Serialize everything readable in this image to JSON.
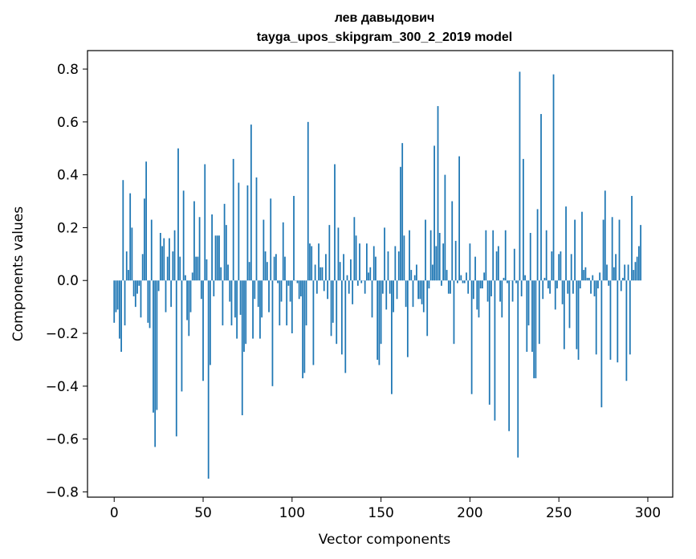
{
  "chart_data": {
    "type": "bar",
    "title": "лев давыдович",
    "subtitle": "tayga_upos_skipgram_300_2_2019 model",
    "xlabel": "Vector components",
    "ylabel": "Components values",
    "xlim": [
      -15,
      314
    ],
    "ylim": [
      -0.82,
      0.87
    ],
    "x_ticks": [
      0,
      50,
      100,
      150,
      200,
      250,
      300
    ],
    "y_ticks": [
      -0.8,
      -0.6,
      -0.4,
      -0.2,
      0.0,
      0.2,
      0.4,
      0.6,
      0.8
    ],
    "x_tick_labels": [
      "0",
      "50",
      "100",
      "150",
      "200",
      "250",
      "300"
    ],
    "y_tick_labels": [
      "−0.8",
      "−0.6",
      "−0.4",
      "−0.2",
      "0.0",
      "0.2",
      "0.4",
      "0.6",
      "0.8"
    ],
    "bar_color": "#1f77b4",
    "grid": false,
    "values": [
      -0.16,
      -0.12,
      -0.11,
      -0.22,
      -0.27,
      0.38,
      -0.17,
      0.11,
      0.04,
      0.33,
      0.2,
      -0.06,
      -0.1,
      -0.05,
      -0.02,
      -0.14,
      0.1,
      0.31,
      0.45,
      -0.16,
      -0.18,
      0.23,
      -0.5,
      -0.63,
      -0.49,
      -0.04,
      0.18,
      0.13,
      0.16,
      -0.12,
      0.09,
      0.16,
      -0.1,
      0.11,
      0.19,
      -0.59,
      0.5,
      0.09,
      -0.42,
      0.34,
      0.02,
      -0.15,
      -0.21,
      -0.12,
      0.03,
      0.3,
      0.09,
      0.09,
      0.24,
      -0.07,
      -0.38,
      0.44,
      0.08,
      -0.75,
      -0.32,
      0.25,
      -0.06,
      0.17,
      0.17,
      0.17,
      0.05,
      -0.17,
      0.29,
      0.21,
      0.06,
      -0.08,
      -0.17,
      0.46,
      -0.14,
      -0.22,
      0.37,
      -0.13,
      -0.51,
      -0.27,
      -0.24,
      0.36,
      0.07,
      0.59,
      -0.22,
      -0.07,
      0.39,
      -0.1,
      -0.22,
      -0.14,
      0.23,
      0.11,
      0.07,
      -0.12,
      0.31,
      -0.4,
      0.09,
      0.1,
      -0.01,
      -0.17,
      -0.08,
      0.22,
      0.09,
      -0.17,
      -0.02,
      -0.08,
      -0.2,
      0.32,
      0.0,
      -0.01,
      -0.07,
      -0.06,
      -0.37,
      -0.35,
      -0.17,
      0.6,
      0.14,
      0.13,
      -0.32,
      0.06,
      -0.05,
      0.14,
      0.05,
      0.05,
      -0.04,
      0.1,
      -0.07,
      0.21,
      -0.21,
      -0.16,
      0.44,
      -0.24,
      0.2,
      0.07,
      -0.28,
      0.1,
      -0.35,
      0.02,
      -0.05,
      0.08,
      -0.09,
      0.24,
      0.17,
      -0.02,
      0.14,
      -0.01,
      0.0,
      -0.05,
      0.14,
      0.03,
      0.05,
      -0.14,
      0.13,
      0.09,
      -0.3,
      -0.32,
      -0.24,
      -0.05,
      0.2,
      -0.11,
      0.11,
      -0.05,
      -0.43,
      -0.12,
      0.13,
      -0.07,
      0.11,
      0.43,
      0.52,
      0.17,
      -0.1,
      -0.29,
      0.19,
      0.04,
      -0.1,
      0.02,
      0.06,
      -0.07,
      -0.07,
      -0.09,
      -0.12,
      0.23,
      -0.21,
      -0.03,
      0.19,
      0.06,
      0.51,
      0.13,
      0.66,
      0.18,
      -0.02,
      0.14,
      0.4,
      0.04,
      -0.05,
      -0.05,
      0.3,
      -0.24,
      0.15,
      -0.01,
      0.47,
      0.02,
      -0.01,
      -0.01,
      0.03,
      -0.05,
      0.14,
      -0.43,
      -0.07,
      0.09,
      -0.11,
      -0.14,
      -0.03,
      -0.03,
      0.03,
      0.19,
      -0.08,
      -0.47,
      -0.06,
      0.19,
      -0.53,
      0.11,
      0.13,
      -0.08,
      -0.14,
      0.01,
      0.19,
      -0.01,
      -0.57,
      0.0,
      -0.08,
      0.12,
      -0.01,
      -0.67,
      0.79,
      -0.06,
      0.46,
      0.02,
      -0.27,
      -0.17,
      0.18,
      -0.27,
      -0.37,
      -0.37,
      0.27,
      -0.24,
      0.63,
      -0.07,
      0.01,
      0.19,
      -0.03,
      -0.05,
      0.11,
      0.78,
      -0.11,
      -0.03,
      0.1,
      0.11,
      -0.09,
      -0.26,
      0.28,
      -0.05,
      -0.18,
      0.1,
      -0.05,
      0.23,
      -0.26,
      -0.3,
      -0.03,
      0.26,
      0.04,
      0.05,
      0.01,
      0.01,
      -0.05,
      0.02,
      -0.06,
      -0.28,
      -0.03,
      0.03,
      -0.48,
      0.23,
      0.34,
      0.06,
      -0.02,
      -0.3,
      0.24,
      0.05,
      0.1,
      -0.31,
      0.23,
      -0.04,
      0.01,
      0.06,
      -0.38,
      0.06,
      -0.28,
      0.32,
      0.04,
      0.07,
      0.09,
      0.13,
      0.21
    ]
  }
}
